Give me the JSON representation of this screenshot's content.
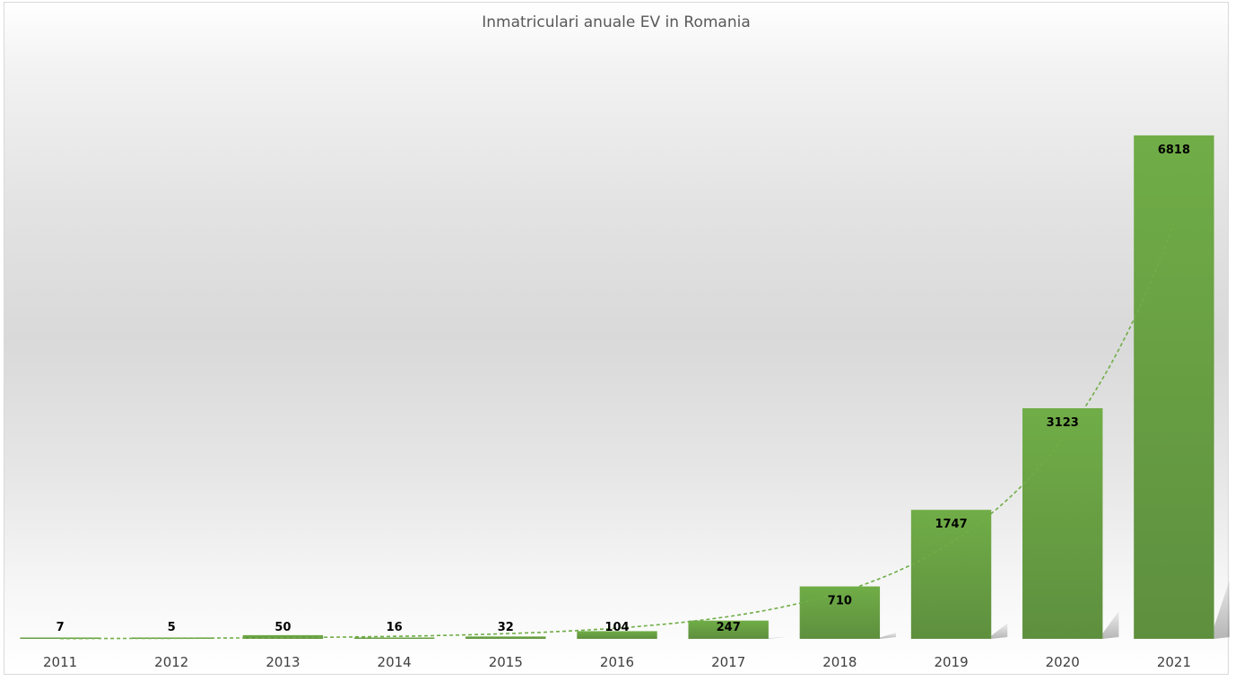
{
  "chart_data": {
    "type": "bar",
    "title": "Inmatriculari anuale EV in Romania",
    "xlabel": "",
    "ylabel": "",
    "categories": [
      "2011",
      "2012",
      "2013",
      "2014",
      "2015",
      "2016",
      "2017",
      "2018",
      "2019",
      "2020",
      "2021"
    ],
    "values": [
      7,
      5,
      50,
      16,
      32,
      104,
      247,
      710,
      1747,
      3123,
      6818
    ],
    "ylim": [
      0,
      7400
    ],
    "grid": false,
    "legend": "none",
    "trendline": "exponential-dashed",
    "data_labels": true,
    "colors": {
      "bar_top": "#70ad47",
      "bar_bottom": "#5e8f3e",
      "trendline": "#70ad47",
      "bar_shadow": "#b8b8b8"
    }
  }
}
